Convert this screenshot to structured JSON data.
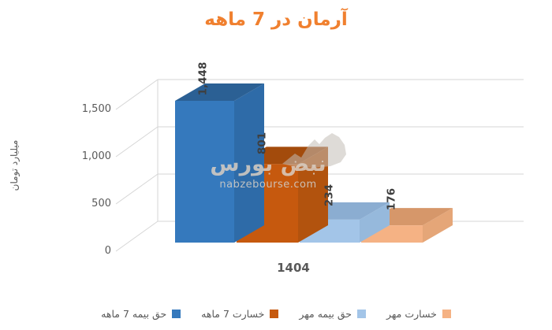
{
  "title": {
    "text": "آرمان در 7 ماهه",
    "color": "#f0802f"
  },
  "y_axis": {
    "title": "میلیارد تومان",
    "ticks": [
      "0",
      "500",
      "1,000",
      "1,500"
    ]
  },
  "x_axis": {
    "category": "1404"
  },
  "watermark": {
    "logo": "bull-icon",
    "brand": "نبض بورس",
    "domain": "nabzebourse.com"
  },
  "chart_data": {
    "type": "bar",
    "style": "3d-clustered-column",
    "title": "آرمان در 7 ماهه",
    "ylabel": "میلیارد تومان",
    "categories": [
      "1404"
    ],
    "series": [
      {
        "name": "حق بیمه  7 ماهه",
        "value": 1448,
        "label": "1,448",
        "color": "#3579bd",
        "color_top": "#2b6094",
        "color_side": "#2e6ba8"
      },
      {
        "name": "خسارت 7 ماهه",
        "value": 801,
        "label": "801",
        "color": "#c6590e",
        "color_top": "#a34b0c",
        "color_side": "#b2530e"
      },
      {
        "name": "حق بیمه مهر",
        "value": 234,
        "label": "234",
        "color": "#a3c5e8",
        "color_top": "#8badd1",
        "color_side": "#96b9dc"
      },
      {
        "name": "خسارت مهر",
        "value": 176,
        "label": "176",
        "color": "#f5b284",
        "color_top": "#d6976a",
        "color_side": "#e5a678"
      }
    ],
    "ylim": [
      0,
      1500
    ],
    "grid": true,
    "legend_position": "bottom",
    "colors": {
      "grid": "#d6d6d6",
      "axis_text": "#595959",
      "value_label": "#3f3f3f"
    }
  }
}
